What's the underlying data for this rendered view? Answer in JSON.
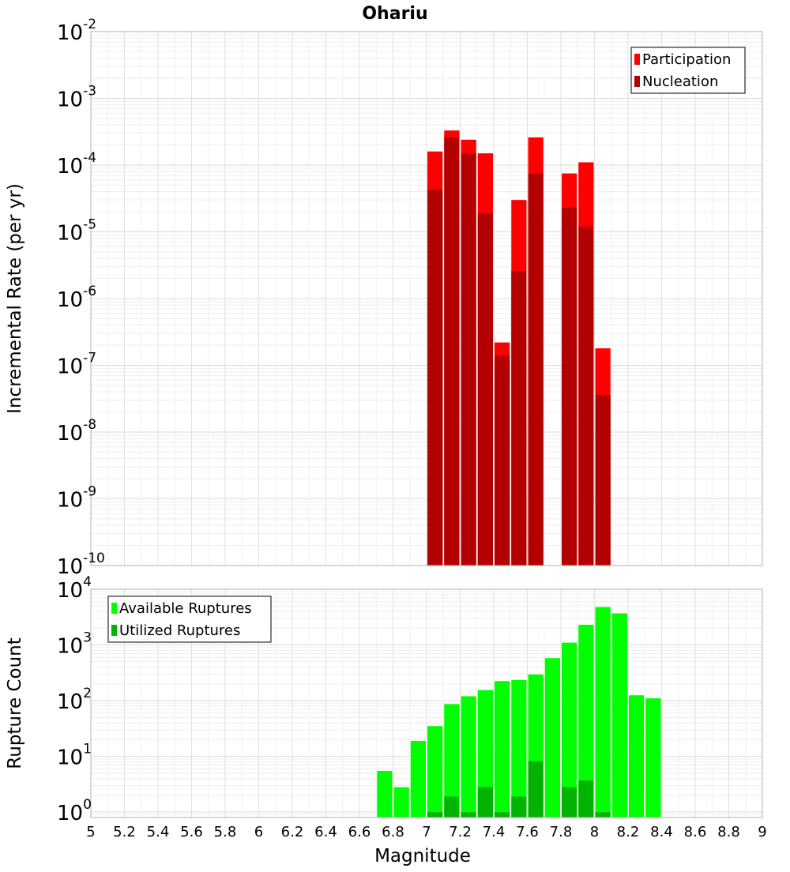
{
  "title": "Ohariu",
  "colors": {
    "participation": "#ff0000",
    "nucleation": "#b30000",
    "available": "#00ff00",
    "utilized": "#00b300",
    "grid": "#e6e6e6",
    "frame": "#b0b0b0"
  },
  "chart_data": [
    {
      "type": "bar",
      "title": "Ohariu",
      "ylabel": "Incremental Rate (per yr)",
      "xlabel": "",
      "yscale": "log",
      "ylim": [
        1e-10,
        0.01
      ],
      "xlim": [
        5,
        9
      ],
      "bar_width": 0.1,
      "grid": true,
      "legend_position": "top-right",
      "yticks": [
        {
          "base": "10",
          "exp": "-10",
          "value": 1e-10
        },
        {
          "base": "10",
          "exp": "-9",
          "value": 1e-09
        },
        {
          "base": "10",
          "exp": "-8",
          "value": 1e-08
        },
        {
          "base": "10",
          "exp": "-7",
          "value": 1e-07
        },
        {
          "base": "10",
          "exp": "-6",
          "value": 1e-06
        },
        {
          "base": "10",
          "exp": "-5",
          "value": 1e-05
        },
        {
          "base": "10",
          "exp": "-4",
          "value": 0.0001
        },
        {
          "base": "10",
          "exp": "-3",
          "value": 0.001
        },
        {
          "base": "10",
          "exp": "-2",
          "value": 0.01
        }
      ],
      "series": [
        {
          "name": "Participation",
          "color": "#ff0000",
          "x": [
            7.05,
            7.15,
            7.25,
            7.35,
            7.45,
            7.55,
            7.65,
            7.85,
            7.95,
            8.05
          ],
          "values": [
            0.00016,
            0.00033,
            0.00024,
            0.00015,
            2.2e-07,
            3e-05,
            0.00026,
            7.5e-05,
            0.00011,
            1.8e-07
          ]
        },
        {
          "name": "Nucleation",
          "color": "#b30000",
          "x": [
            7.05,
            7.15,
            7.25,
            7.35,
            7.45,
            7.55,
            7.65,
            7.85,
            7.95,
            8.05
          ],
          "values": [
            4.3e-05,
            0.00026,
            0.00015,
            1.9e-05,
            1.4e-07,
            2.6e-06,
            7.5e-05,
            2.3e-05,
            1.2e-05,
            3.6e-08
          ]
        }
      ]
    },
    {
      "type": "bar",
      "title": "",
      "ylabel": "Rupture Count",
      "xlabel": "Magnitude",
      "yscale": "log",
      "ylim": [
        0.8,
        10000
      ],
      "xlim": [
        5,
        9
      ],
      "bar_width": 0.1,
      "grid": true,
      "legend_position": "top-left",
      "yticks": [
        {
          "base": "10",
          "exp": "0",
          "value": 1
        },
        {
          "base": "10",
          "exp": "1",
          "value": 10
        },
        {
          "base": "10",
          "exp": "2",
          "value": 100
        },
        {
          "base": "10",
          "exp": "3",
          "value": 1000
        },
        {
          "base": "10",
          "exp": "4",
          "value": 10000
        }
      ],
      "xticks": [
        "5",
        "5.2",
        "5.4",
        "5.6",
        "5.8",
        "6",
        "6.2",
        "6.4",
        "6.6",
        "6.8",
        "7",
        "7.2",
        "7.4",
        "7.6",
        "7.8",
        "8",
        "8.2",
        "8.4",
        "8.6",
        "8.8",
        "9"
      ],
      "series": [
        {
          "name": "Available Ruptures",
          "color": "#00ff00",
          "x": [
            6.75,
            6.85,
            6.95,
            7.05,
            7.15,
            7.25,
            7.35,
            7.45,
            7.55,
            7.65,
            7.75,
            7.85,
            7.95,
            8.05,
            8.15,
            8.25,
            8.35
          ],
          "values": [
            5.5,
            2.8,
            19,
            35,
            87,
            120,
            155,
            225,
            235,
            295,
            580,
            1100,
            2300,
            4800,
            3700,
            125,
            110
          ]
        },
        {
          "name": "Utilized Ruptures",
          "color": "#00b300",
          "x": [
            7.05,
            7.15,
            7.25,
            7.35,
            7.45,
            7.55,
            7.65,
            7.85,
            7.95,
            8.05
          ],
          "values": [
            1,
            1.9,
            1,
            2.8,
            1,
            1.9,
            8.2,
            2.8,
            3.7,
            1
          ]
        }
      ]
    }
  ]
}
